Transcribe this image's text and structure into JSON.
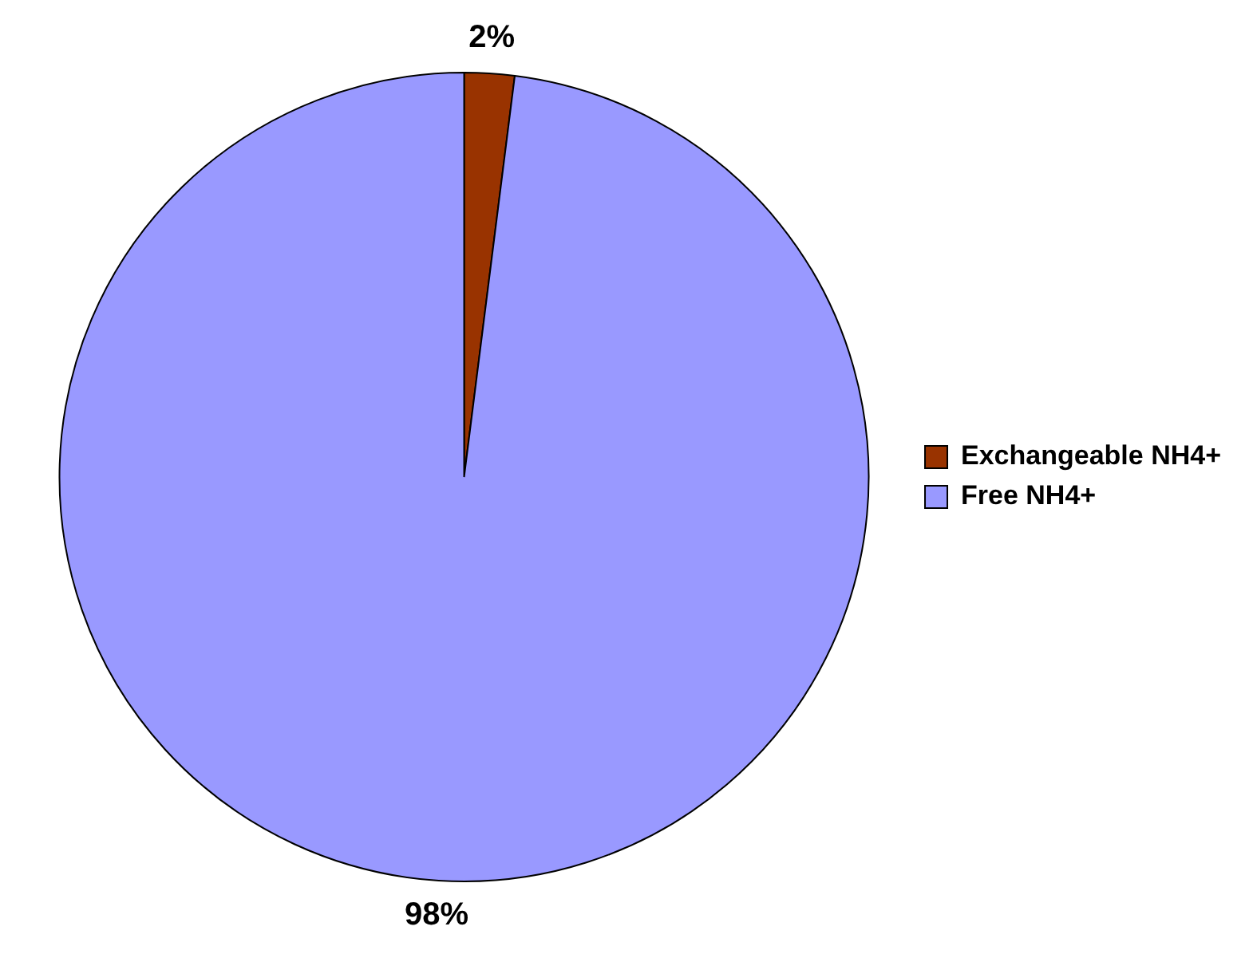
{
  "chart_data": {
    "type": "pie",
    "categories": [
      "Exchangeable NH4+",
      "Free NH4+"
    ],
    "values": [
      2,
      98
    ],
    "colors": [
      "#993300",
      "#9999ff"
    ],
    "value_labels": [
      "2%",
      "98%"
    ],
    "legend": "right"
  }
}
